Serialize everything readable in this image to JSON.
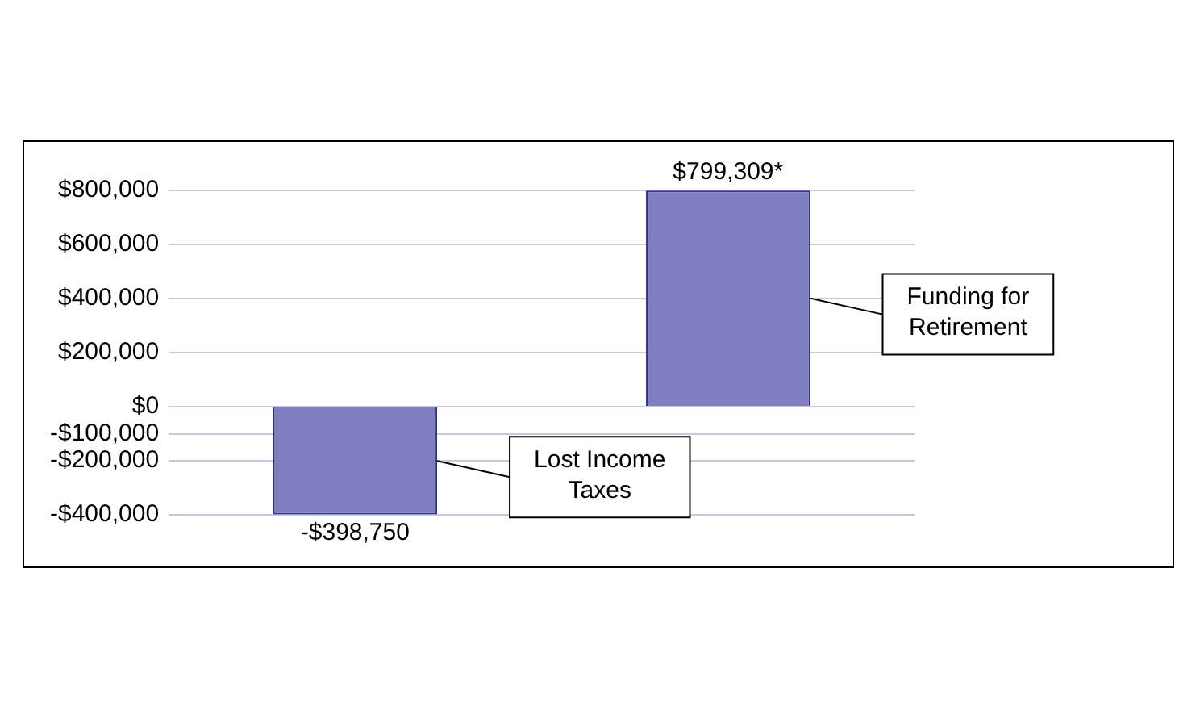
{
  "chart_data": {
    "type": "bar",
    "categories": [
      null,
      null
    ],
    "values": [
      -398750,
      799309
    ],
    "color": "#7f7fbf",
    "value_labels": [
      "-$398,750",
      "$799,309*"
    ],
    "annotations": [
      "Lost Income Taxes",
      "Funding for Retirement"
    ],
    "ylim": [
      -400000,
      800000
    ],
    "yticks": [
      {
        "value": -400000,
        "label": "-$400,000"
      },
      {
        "value": -200000,
        "label": "-$200,000"
      },
      {
        "value": -100000,
        "label": "-$100,000"
      },
      {
        "value": 0,
        "label": "$0"
      },
      {
        "value": 200000,
        "label": "$200,000"
      },
      {
        "value": 400000,
        "label": "$400,000"
      },
      {
        "value": 600000,
        "label": "$600,000"
      },
      {
        "value": 800000,
        "label": "$800,000"
      }
    ],
    "grid": "y"
  }
}
